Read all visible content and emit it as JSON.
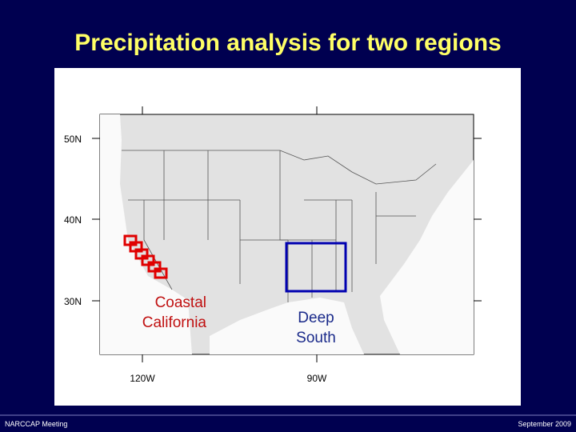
{
  "title": "Precipitation analysis for two regions",
  "map": {
    "lat_labels": [
      "50N",
      "40N",
      "30N"
    ],
    "lon_labels": [
      "120W",
      "90W"
    ],
    "regions": [
      {
        "label_lines": [
          "Coastal",
          "California"
        ]
      },
      {
        "label_lines": [
          "Deep",
          "South"
        ]
      }
    ]
  },
  "footer": {
    "left": "NARCCAP Meeting",
    "right": "September 2009"
  }
}
